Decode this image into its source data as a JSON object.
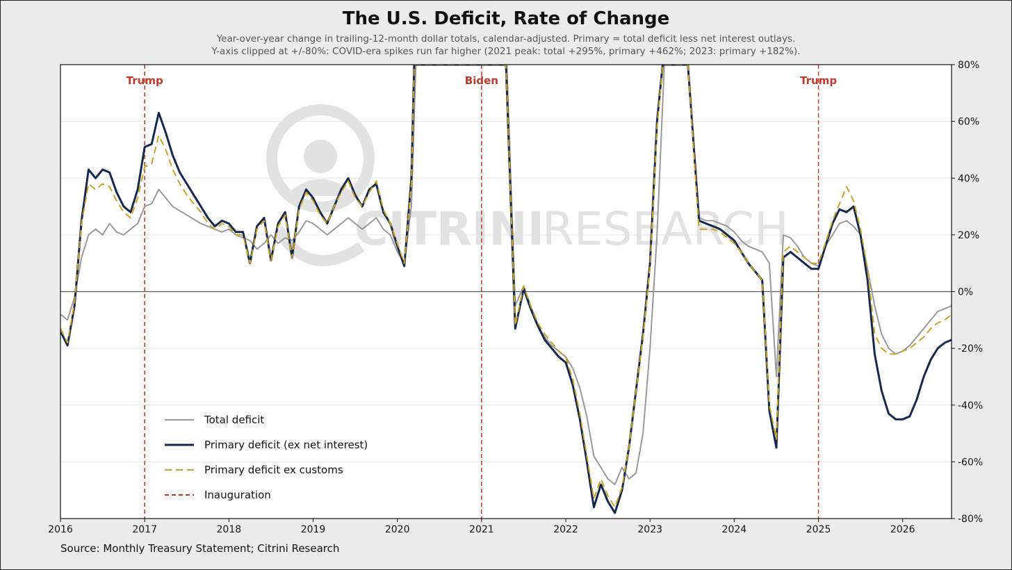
{
  "title": "The U.S. Deficit, Rate of Change",
  "subtitle_line1": "Year-over-year change in trailing-12-month dollar totals, calendar-adjusted. Primary = total deficit less net interest outlays.",
  "subtitle_line2": "Y-axis clipped at +/-80%: COVID-era spikes run far higher (2021 peak: total +295%, primary +462%; 2023: primary +182%).",
  "source": "Source: Monthly Treasury Statement; Citrini Research",
  "watermark": {
    "part1": "CITRINI",
    "part2": "RESEARCH"
  },
  "chart_data": {
    "type": "line",
    "xlabel": "",
    "ylabel": "",
    "xlim": [
      2016,
      2026.58
    ],
    "ylim": [
      -80,
      80
    ],
    "x_ticks": [
      "2016",
      "2017",
      "2018",
      "2019",
      "2020",
      "2021",
      "2022",
      "2023",
      "2024",
      "2025",
      "2026"
    ],
    "y_ticks": [
      "80%",
      "60%",
      "40%",
      "20%",
      "0%",
      "-20%",
      "-40%",
      "-60%",
      "-80%"
    ],
    "y_axis_side": "right",
    "grid": "horizontal",
    "legend_position": "lower-left",
    "events": [
      {
        "label": "Trump",
        "x": 2017.0
      },
      {
        "label": "Biden",
        "x": 2021.0
      },
      {
        "label": "Trump",
        "x": 2025.0
      }
    ],
    "series": [
      {
        "name": "Total deficit",
        "color": "#999999",
        "style": "solid",
        "x": [
          2016.0,
          2016.083,
          2016.167,
          2016.25,
          2016.333,
          2016.417,
          2016.5,
          2016.583,
          2016.667,
          2016.75,
          2016.833,
          2016.917,
          2017.0,
          2017.083,
          2017.167,
          2017.25,
          2017.333,
          2017.5,
          2017.667,
          2017.833,
          2017.917,
          2018.0,
          2018.083,
          2018.167,
          2018.25,
          2018.333,
          2018.417,
          2018.5,
          2018.583,
          2018.667,
          2018.75,
          2018.833,
          2018.917,
          2019.0,
          2019.083,
          2019.167,
          2019.25,
          2019.333,
          2019.417,
          2019.5,
          2019.583,
          2019.667,
          2019.75,
          2019.833,
          2019.917,
          2020.0,
          2020.083,
          2020.167,
          2020.22,
          2021.3,
          2021.4,
          2021.5,
          2021.583,
          2021.667,
          2021.75,
          2021.833,
          2021.917,
          2022.0,
          2022.083,
          2022.167,
          2022.25,
          2022.333,
          2022.417,
          2022.5,
          2022.583,
          2022.667,
          2022.75,
          2022.833,
          2022.917,
          2023.0,
          2023.083,
          2023.17,
          2023.45,
          2023.583,
          2023.667,
          2023.75,
          2023.833,
          2023.917,
          2024.0,
          2024.083,
          2024.167,
          2024.25,
          2024.333,
          2024.417,
          2024.5,
          2024.583,
          2024.667,
          2024.75,
          2024.833,
          2024.917,
          2025.0,
          2025.083,
          2025.167,
          2025.25,
          2025.333,
          2025.417,
          2025.5,
          2025.583,
          2025.667,
          2025.75,
          2025.833,
          2025.917,
          2026.0,
          2026.083,
          2026.167,
          2026.25,
          2026.333,
          2026.417,
          2026.583
        ],
        "y": [
          -8,
          -10,
          -2,
          12,
          20,
          22,
          20,
          24,
          21,
          20,
          22,
          24,
          30,
          31,
          36,
          33,
          30,
          27,
          24,
          22,
          21,
          22,
          20,
          19,
          18,
          15,
          17,
          20,
          17,
          19,
          18,
          21,
          25,
          24,
          22,
          20,
          22,
          24,
          26,
          24,
          22,
          24,
          26,
          22,
          20,
          14,
          10,
          30,
          80,
          80,
          -5,
          2,
          -5,
          -12,
          -16,
          -19,
          -21,
          -23,
          -27,
          -34,
          -44,
          -58,
          -62,
          -66,
          -68,
          -62,
          -66,
          -64,
          -50,
          -20,
          20,
          80,
          80,
          26,
          25,
          25,
          24,
          23,
          21,
          18,
          16,
          15,
          14,
          10,
          -30,
          20,
          19,
          16,
          12,
          10,
          9,
          16,
          20,
          24,
          25,
          23,
          20,
          8,
          -5,
          -15,
          -20,
          -22,
          -21,
          -19,
          -16,
          -13,
          -10,
          -7,
          -5
        ]
      },
      {
        "name": "Primary deficit (ex net interest)",
        "color": "#15294f",
        "style": "solid",
        "x": [
          2016.0,
          2016.083,
          2016.167,
          2016.25,
          2016.333,
          2016.417,
          2016.5,
          2016.583,
          2016.667,
          2016.75,
          2016.833,
          2016.917,
          2017.0,
          2017.083,
          2017.167,
          2017.25,
          2017.333,
          2017.417,
          2017.5,
          2017.583,
          2017.667,
          2017.75,
          2017.833,
          2017.917,
          2018.0,
          2018.083,
          2018.167,
          2018.25,
          2018.333,
          2018.417,
          2018.5,
          2018.583,
          2018.667,
          2018.75,
          2018.833,
          2018.917,
          2019.0,
          2019.083,
          2019.167,
          2019.25,
          2019.333,
          2019.417,
          2019.5,
          2019.583,
          2019.667,
          2019.75,
          2019.833,
          2019.917,
          2020.0,
          2020.083,
          2020.167,
          2020.2,
          2021.29,
          2021.4,
          2021.5,
          2021.583,
          2021.667,
          2021.75,
          2021.833,
          2021.917,
          2022.0,
          2022.083,
          2022.167,
          2022.25,
          2022.333,
          2022.417,
          2022.5,
          2022.583,
          2022.667,
          2022.75,
          2022.833,
          2022.917,
          2023.0,
          2023.083,
          2023.15,
          2023.45,
          2023.583,
          2023.667,
          2023.75,
          2023.833,
          2023.917,
          2024.0,
          2024.083,
          2024.167,
          2024.25,
          2024.333,
          2024.417,
          2024.5,
          2024.583,
          2024.667,
          2024.75,
          2024.833,
          2024.917,
          2025.0,
          2025.083,
          2025.167,
          2025.25,
          2025.333,
          2025.417,
          2025.5,
          2025.583,
          2025.667,
          2025.75,
          2025.833,
          2025.917,
          2026.0,
          2026.083,
          2026.167,
          2026.25,
          2026.333,
          2026.417,
          2026.5,
          2026.583
        ],
        "y": [
          -14,
          -19,
          -5,
          25,
          43,
          40,
          43,
          42,
          35,
          30,
          28,
          36,
          51,
          52,
          63,
          56,
          48,
          42,
          38,
          34,
          30,
          26,
          23,
          25,
          24,
          21,
          21,
          10,
          23,
          26,
          11,
          24,
          28,
          12,
          30,
          36,
          33,
          28,
          24,
          30,
          36,
          40,
          34,
          30,
          36,
          38,
          28,
          24,
          16,
          9,
          40,
          80,
          80,
          -13,
          1,
          -6,
          -12,
          -17,
          -20,
          -23,
          -25,
          -33,
          -45,
          -60,
          -76,
          -68,
          -74,
          -78,
          -70,
          -55,
          -35,
          -15,
          10,
          60,
          80,
          80,
          25,
          24,
          23,
          22,
          20,
          18,
          14,
          10,
          7,
          4,
          -42,
          -55,
          12,
          14,
          12,
          10,
          8,
          8,
          16,
          24,
          29,
          28,
          30,
          20,
          4,
          -22,
          -35,
          -43,
          -45,
          -45,
          -44,
          -38,
          -30,
          -24,
          -20,
          -18,
          -17
        ]
      },
      {
        "name": "Primary deficit ex customs",
        "color": "#c9a227",
        "style": "dashed",
        "x": [
          2016.0,
          2016.083,
          2016.167,
          2016.25,
          2016.333,
          2016.417,
          2016.5,
          2016.583,
          2016.667,
          2016.75,
          2016.833,
          2016.917,
          2017.0,
          2017.083,
          2017.167,
          2017.25,
          2017.333,
          2017.417,
          2017.5,
          2017.583,
          2017.667,
          2017.75,
          2017.833,
          2017.917,
          2018.0,
          2018.083,
          2018.167,
          2018.25,
          2018.333,
          2018.417,
          2018.5,
          2018.583,
          2018.667,
          2018.75,
          2018.833,
          2018.917,
          2019.0,
          2019.083,
          2019.167,
          2019.25,
          2019.333,
          2019.417,
          2019.5,
          2019.583,
          2019.667,
          2019.75,
          2019.833,
          2019.917,
          2020.0,
          2020.083,
          2020.167,
          2020.2,
          2021.29,
          2021.4,
          2021.5,
          2021.583,
          2021.667,
          2021.75,
          2021.833,
          2021.917,
          2022.0,
          2022.083,
          2022.167,
          2022.25,
          2022.333,
          2022.417,
          2022.5,
          2022.583,
          2022.667,
          2022.75,
          2022.833,
          2022.917,
          2023.0,
          2023.083,
          2023.15,
          2023.45,
          2023.583,
          2023.667,
          2023.75,
          2023.833,
          2023.917,
          2024.0,
          2024.083,
          2024.167,
          2024.25,
          2024.333,
          2024.417,
          2024.5,
          2024.583,
          2024.667,
          2024.75,
          2024.833,
          2024.917,
          2025.0,
          2025.083,
          2025.167,
          2025.25,
          2025.333,
          2025.417,
          2025.5,
          2025.583,
          2025.667,
          2025.75,
          2025.833,
          2025.917,
          2026.0,
          2026.083,
          2026.167,
          2026.25,
          2026.333,
          2026.417,
          2026.5,
          2026.583
        ],
        "y": [
          -13,
          -18,
          -4,
          24,
          38,
          36,
          38,
          37,
          32,
          28,
          26,
          33,
          44,
          45,
          55,
          50,
          43,
          38,
          34,
          31,
          28,
          24,
          22,
          24,
          23,
          20,
          20,
          10,
          22,
          25,
          11,
          23,
          27,
          12,
          29,
          35,
          32,
          27,
          24,
          30,
          35,
          39,
          33,
          30,
          35,
          39,
          29,
          24,
          17,
          10,
          38,
          80,
          80,
          -12,
          2,
          -5,
          -11,
          -15,
          -18,
          -21,
          -23,
          -31,
          -43,
          -58,
          -73,
          -66,
          -72,
          -76,
          -69,
          -55,
          -35,
          -16,
          9,
          58,
          80,
          80,
          22,
          22,
          22,
          21,
          19,
          17,
          14,
          10,
          7,
          4,
          -40,
          -52,
          14,
          16,
          14,
          12,
          10,
          10,
          17,
          25,
          31,
          37,
          32,
          22,
          8,
          -15,
          -20,
          -22,
          -22,
          -21,
          -20,
          -18,
          -16,
          -13,
          -11,
          -10,
          -8
        ]
      }
    ]
  },
  "legend": [
    {
      "label": "Total deficit",
      "color": "#999999",
      "style": "solid"
    },
    {
      "label": "Primary deficit (ex net interest)",
      "color": "#15294f",
      "style": "solid"
    },
    {
      "label": "Primary deficit ex customs",
      "color": "#c9a227",
      "style": "dashed"
    },
    {
      "label": "Inauguration",
      "color": "#c0392b",
      "style": "dashed"
    }
  ]
}
